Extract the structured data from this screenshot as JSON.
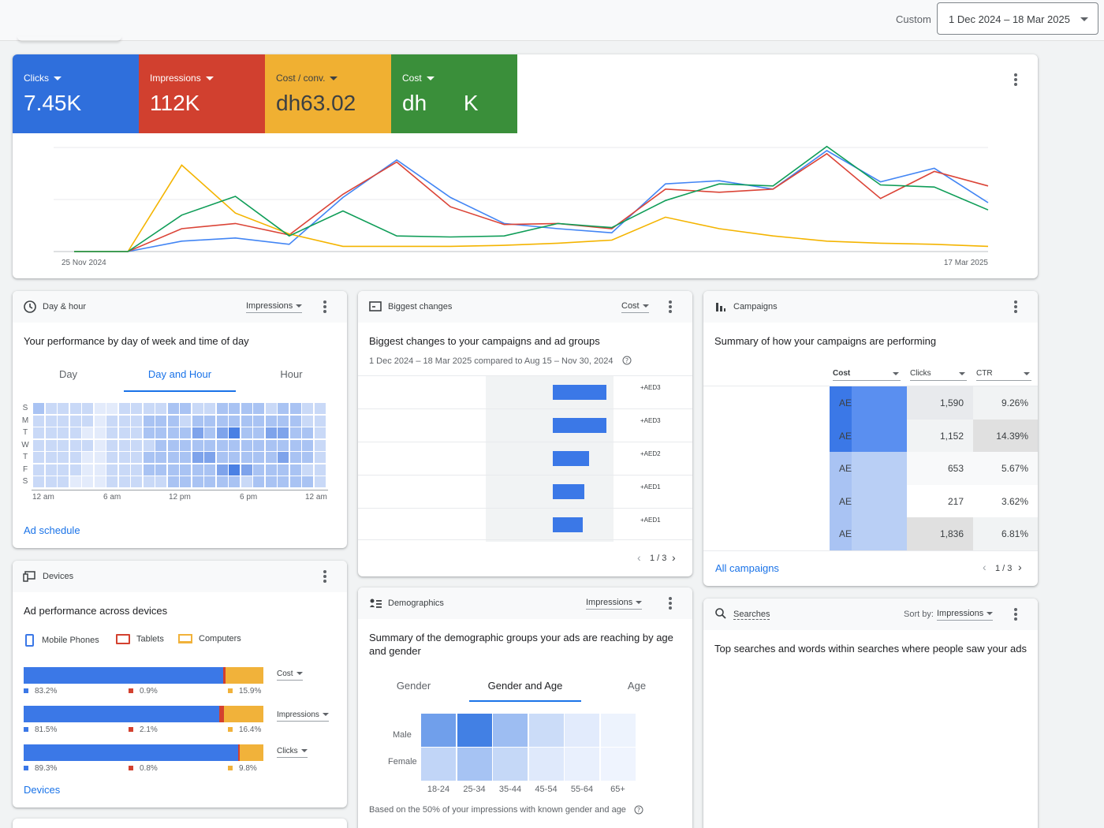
{
  "topbar": {
    "custom_label": "Custom",
    "date_range": "1 Dec 2024 – 18 Mar 2025"
  },
  "colors": {
    "blue": "#3b78e7",
    "red": "#d3412f",
    "yellow": "#f1b23a",
    "green": "#3a8f3a"
  },
  "metrics": [
    {
      "label": "Clicks",
      "value": "7.45K",
      "color": "#2f6fdc"
    },
    {
      "label": "Impressions",
      "value": "112K",
      "color": "#d1402f"
    },
    {
      "label": "Cost / conv.",
      "value": "dh63.02",
      "color": "#f0b032"
    },
    {
      "label": "Cost",
      "value": "dh      K",
      "color": "#3a8f3a"
    }
  ],
  "chart_data": {
    "type": "line",
    "x_start_label": "25 Nov 2024",
    "x_end_label": "17 Mar 2025",
    "ylim": [
      0,
      100
    ],
    "series": [
      {
        "color": "#4285f4",
        "values": [
          0,
          0,
          10,
          13,
          7,
          52,
          88,
          52,
          27,
          22,
          18,
          65,
          68,
          60,
          97,
          67,
          80,
          47
        ]
      },
      {
        "color": "#db4437",
        "values": [
          0,
          0,
          22,
          27,
          16,
          55,
          86,
          43,
          26,
          27,
          22,
          60,
          57,
          60,
          94,
          51,
          77,
          63
        ]
      },
      {
        "color": "#f4b400",
        "values": [
          0,
          0,
          83,
          37,
          17,
          5,
          5,
          5,
          6,
          8,
          11,
          33,
          22,
          15,
          10,
          8,
          7,
          5
        ]
      },
      {
        "color": "#0f9d58",
        "values": [
          0,
          0,
          35,
          53,
          15,
          39,
          15,
          14,
          15,
          27,
          23,
          49,
          65,
          63,
          101,
          64,
          62,
          40
        ]
      }
    ]
  },
  "day_hour": {
    "title": "Day & hour",
    "dropdown": "Impressions",
    "desc": "Your performance by day of week and time of day",
    "tabs": [
      "Day",
      "Day and Hour",
      "Hour"
    ],
    "days": [
      "S",
      "M",
      "T",
      "W",
      "T",
      "F",
      "S"
    ],
    "hours": [
      "12 am",
      "6 am",
      "12 pm",
      "6 pm",
      "12 am"
    ],
    "link": "Ad schedule",
    "grid": [
      [
        3,
        2,
        2,
        2,
        2,
        1,
        1,
        2,
        2,
        2,
        2,
        3,
        3,
        2,
        2,
        3,
        3,
        3,
        3,
        2,
        3,
        3,
        2,
        2
      ],
      [
        2,
        2,
        2,
        2,
        2,
        1,
        2,
        2,
        2,
        3,
        3,
        3,
        2,
        3,
        3,
        3,
        3,
        3,
        3,
        3,
        3,
        3,
        2,
        2
      ],
      [
        2,
        2,
        2,
        2,
        1,
        1,
        2,
        2,
        2,
        3,
        3,
        3,
        3,
        4,
        3,
        4,
        5,
        3,
        3,
        4,
        4,
        3,
        3,
        2
      ],
      [
        2,
        2,
        2,
        2,
        2,
        1,
        2,
        2,
        2,
        2,
        3,
        3,
        3,
        3,
        3,
        3,
        3,
        3,
        3,
        3,
        3,
        3,
        3,
        2
      ],
      [
        2,
        2,
        2,
        2,
        1,
        1,
        2,
        2,
        2,
        3,
        3,
        3,
        3,
        4,
        4,
        3,
        3,
        3,
        3,
        3,
        4,
        3,
        3,
        2
      ],
      [
        2,
        2,
        2,
        2,
        1,
        1,
        2,
        2,
        2,
        3,
        3,
        3,
        3,
        3,
        3,
        4,
        5,
        4,
        3,
        3,
        3,
        3,
        2,
        2
      ],
      [
        2,
        2,
        2,
        1,
        1,
        1,
        2,
        2,
        2,
        2,
        2,
        3,
        3,
        3,
        3,
        3,
        3,
        2,
        3,
        3,
        3,
        3,
        3,
        2
      ]
    ]
  },
  "biggest_changes": {
    "title": "Biggest changes",
    "dropdown": "Cost",
    "desc": "Biggest changes to your campaigns and ad groups",
    "subdesc": "1 Dec 2024 – 18 Mar 2025 compared to Aug 15 – Nov 30, 2024",
    "rows": [
      {
        "label": "+AED3",
        "value": 68
      },
      {
        "label": "+AED3",
        "value": 68
      },
      {
        "label": "+AED2",
        "value": 46
      },
      {
        "label": "+AED1",
        "value": 40
      },
      {
        "label": "+AED1",
        "value": 38
      }
    ],
    "pager": "1 / 3"
  },
  "campaigns": {
    "title": "Campaigns",
    "desc": "Summary of how your campaigns are performing",
    "columns": [
      "Cost",
      "Clicks",
      "CTR"
    ],
    "rows": [
      {
        "cost": "AE",
        "clicks": "1,590",
        "ctr": "9.26%"
      },
      {
        "cost": "AE",
        "clicks": "1,152",
        "ctr": "14.39%"
      },
      {
        "cost": "AE",
        "clicks": "653",
        "ctr": "5.67%"
      },
      {
        "cost": "AE",
        "clicks": "217",
        "ctr": "3.62%"
      },
      {
        "cost": "AE",
        "clicks": "1,836",
        "ctr": "6.81%"
      }
    ],
    "link": "All campaigns",
    "pager": "1 / 3"
  },
  "devices": {
    "title": "Devices",
    "desc": "Ad performance across devices",
    "legend": [
      "Mobile Phones",
      "Tablets",
      "Computers"
    ],
    "metrics": [
      {
        "label": "Cost",
        "mobile": 83.2,
        "tablet": 0.9,
        "computer": 15.9,
        "mobile_txt": "83.2%",
        "tablet_txt": "0.9%",
        "computer_txt": "15.9%"
      },
      {
        "label": "Impressions",
        "mobile": 81.5,
        "tablet": 2.1,
        "computer": 16.4,
        "mobile_txt": "81.5%",
        "tablet_txt": "2.1%",
        "computer_txt": "16.4%"
      },
      {
        "label": "Clicks",
        "mobile": 89.3,
        "tablet": 0.8,
        "computer": 9.8,
        "mobile_txt": "89.3%",
        "tablet_txt": "0.8%",
        "computer_txt": "9.8%"
      }
    ],
    "link": "Devices"
  },
  "demographics": {
    "title": "Demographics",
    "dropdown": "Impressions",
    "desc": "Summary of the demographic groups your ads are reaching by age and gender",
    "tabs": [
      "Gender",
      "Gender and Age",
      "Age"
    ],
    "genders": [
      "Male",
      "Female"
    ],
    "ages": [
      "18-24",
      "25-34",
      "35-44",
      "45-54",
      "55-64",
      "65+"
    ],
    "grid": [
      [
        0.75,
        1.0,
        0.5,
        0.25,
        0.12,
        0.06
      ],
      [
        0.3,
        0.45,
        0.28,
        0.14,
        0.08,
        0.05
      ]
    ],
    "footnote": "Based on the 50% of your impressions with known gender and age"
  },
  "searches": {
    "title": "Searches",
    "sort_label": "Sort by:",
    "sort_value": "Impressions",
    "desc": "Top searches and words within searches where people saw your ads"
  }
}
